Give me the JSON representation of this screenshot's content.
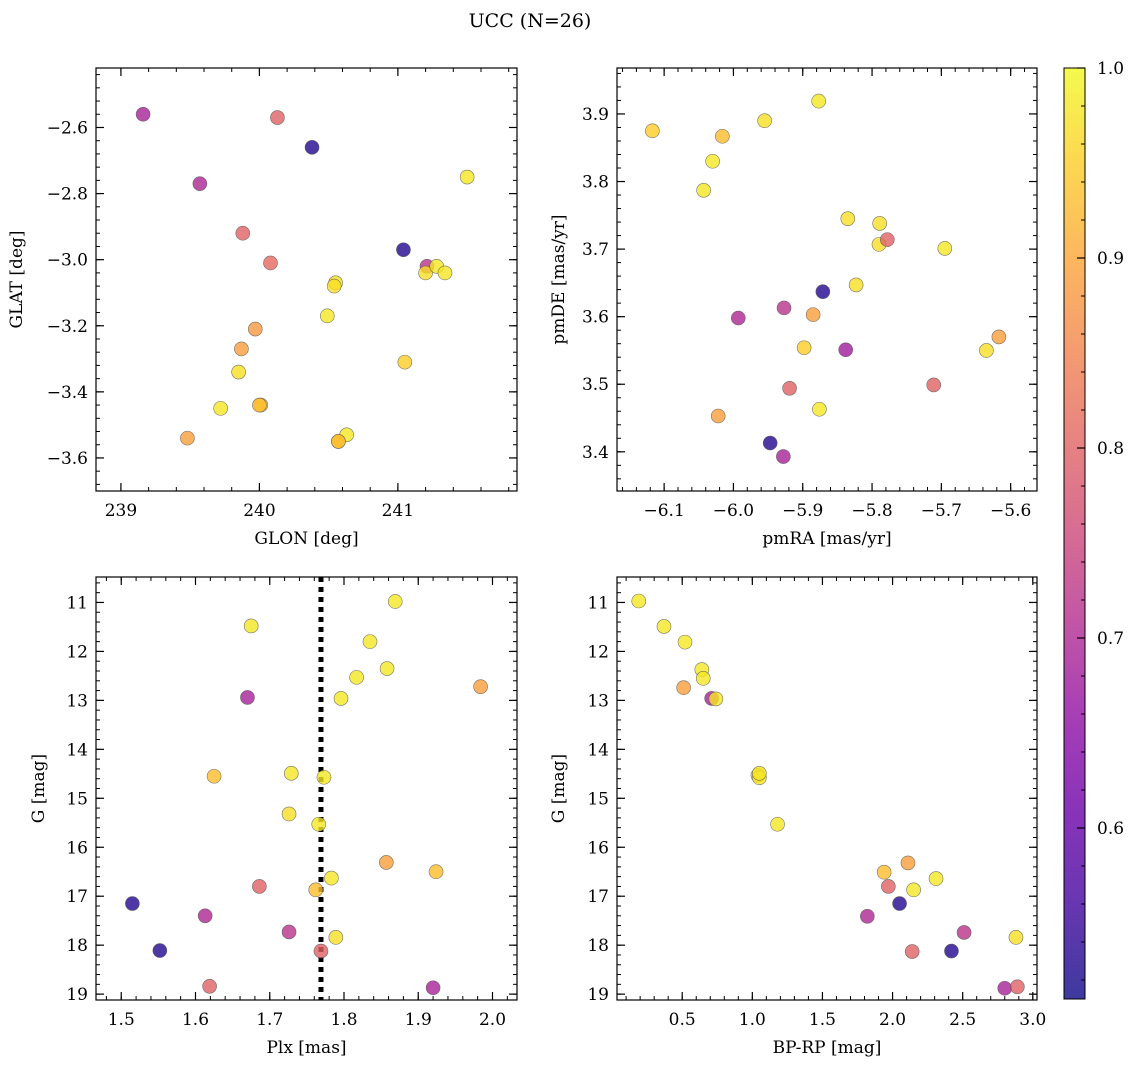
{
  "suptitle": "UCC (N=26)",
  "chart_data": [
    {
      "id": "glon-glat",
      "type": "scatter",
      "xlabel": "GLON [deg]",
      "ylabel": "GLAT [deg]",
      "xlim": [
        238.82,
        241.86
      ],
      "ylim": [
        -3.7,
        -2.42
      ],
      "y_inverted": false,
      "xticks": [
        239,
        240,
        241
      ],
      "yticks": [
        -3.6,
        -3.4,
        -3.2,
        -3.0,
        -2.8,
        -2.6
      ],
      "xtick_labels": [
        "239",
        "240",
        "241"
      ],
      "ytick_labels": [
        "−3.6",
        "−3.4",
        "−3.2",
        "−3.0",
        "−2.8",
        "−2.6"
      ],
      "x": [
        239.16,
        240.13,
        240.38,
        239.57,
        241.5,
        239.88,
        240.08,
        241.04,
        241.21,
        241.2,
        241.28,
        241.34,
        240.55,
        240.54,
        240.49,
        239.97,
        239.87,
        239.85,
        239.72,
        240.01,
        240.0,
        241.05,
        239.48,
        240.63,
        240.57,
        240.57
      ],
      "y": [
        -2.56,
        -2.57,
        -2.66,
        -2.77,
        -2.75,
        -2.92,
        -3.01,
        -2.97,
        -3.02,
        -3.04,
        -3.02,
        -3.04,
        -3.07,
        -3.08,
        -3.17,
        -3.21,
        -3.27,
        -3.34,
        -3.45,
        -3.44,
        -3.44,
        -3.31,
        -3.54,
        -3.53,
        -3.55,
        -3.55
      ],
      "c": [
        0.69,
        0.8,
        0.53,
        0.7,
        0.98,
        0.8,
        0.81,
        0.53,
        0.72,
        0.97,
        0.98,
        0.98,
        0.97,
        0.97,
        0.98,
        0.88,
        0.89,
        0.97,
        0.98,
        0.93,
        0.93,
        0.95,
        0.89,
        0.98,
        0.93,
        0.93
      ]
    },
    {
      "id": "pm",
      "type": "scatter",
      "xlabel": "pmRA [mas/yr]",
      "ylabel": "pmDE [mas/yr]",
      "xlim": [
        -6.168,
        -5.562
      ],
      "ylim": [
        3.342,
        3.968
      ],
      "y_inverted": false,
      "xticks": [
        -6.1,
        -6.0,
        -5.9,
        -5.8,
        -5.7,
        -5.6
      ],
      "yticks": [
        3.4,
        3.5,
        3.6,
        3.7,
        3.8,
        3.9
      ],
      "xtick_labels": [
        "−6.1",
        "−6.0",
        "−5.9",
        "−5.8",
        "−5.7",
        "−5.6"
      ],
      "ytick_labels": [
        "3.4",
        "3.5",
        "3.6",
        "3.7",
        "3.8",
        "3.9"
      ],
      "x": [
        -5.877,
        -6.117,
        -6.016,
        -5.955,
        -6.03,
        -6.043,
        -5.835,
        -5.789,
        -5.79,
        -5.778,
        -5.695,
        -5.823,
        -5.871,
        -5.927,
        -5.993,
        -5.885,
        -5.898,
        -5.838,
        -5.617,
        -5.635,
        -5.711,
        -5.919,
        -5.876,
        -6.022,
        -5.947,
        -5.928
      ],
      "y": [
        3.919,
        3.875,
        3.867,
        3.89,
        3.83,
        3.787,
        3.745,
        3.738,
        3.707,
        3.714,
        3.701,
        3.647,
        3.637,
        3.613,
        3.598,
        3.603,
        3.554,
        3.551,
        3.57,
        3.55,
        3.499,
        3.494,
        3.463,
        3.453,
        3.413,
        3.393
      ],
      "c": [
        0.98,
        0.95,
        0.93,
        0.97,
        0.98,
        0.98,
        0.97,
        0.97,
        0.97,
        0.8,
        0.98,
        0.97,
        0.53,
        0.72,
        0.7,
        0.89,
        0.95,
        0.68,
        0.89,
        0.97,
        0.8,
        0.8,
        0.98,
        0.89,
        0.53,
        0.69
      ]
    },
    {
      "id": "plx-g",
      "type": "scatter",
      "xlabel": "Plx [mas]",
      "ylabel": "G [mag]",
      "xlim": [
        1.466,
        2.033
      ],
      "ylim": [
        19.12,
        10.48
      ],
      "y_inverted": true,
      "xticks": [
        1.5,
        1.6,
        1.7,
        1.8,
        1.9,
        2.0
      ],
      "yticks": [
        11,
        12,
        13,
        14,
        15,
        16,
        17,
        18,
        19
      ],
      "xtick_labels": [
        "1.5",
        "1.6",
        "1.7",
        "1.8",
        "1.9",
        "2.0"
      ],
      "ytick_labels": [
        "11",
        "12",
        "13",
        "14",
        "15",
        "16",
        "17",
        "18",
        "19"
      ],
      "vline": {
        "x": 1.769,
        "style": "dotted"
      },
      "x": [
        1.869,
        1.675,
        1.835,
        1.858,
        1.817,
        1.984,
        1.67,
        1.796,
        1.625,
        1.729,
        1.773,
        1.726,
        1.766,
        1.857,
        1.924,
        1.783,
        1.686,
        1.762,
        1.515,
        1.613,
        1.726,
        1.789,
        1.552,
        1.769,
        1.619,
        1.92
      ],
      "y": [
        10.98,
        11.48,
        11.8,
        12.35,
        12.53,
        12.72,
        12.94,
        12.96,
        14.55,
        14.49,
        14.57,
        15.32,
        15.53,
        16.31,
        16.5,
        16.63,
        16.8,
        16.87,
        17.15,
        17.4,
        17.73,
        17.84,
        18.11,
        18.12,
        18.84,
        18.87
      ],
      "c": [
        0.98,
        0.98,
        0.98,
        0.98,
        0.98,
        0.89,
        0.69,
        0.98,
        0.93,
        0.98,
        0.98,
        0.97,
        0.98,
        0.89,
        0.93,
        0.98,
        0.8,
        0.93,
        0.53,
        0.7,
        0.72,
        0.97,
        0.53,
        0.8,
        0.8,
        0.69
      ]
    },
    {
      "id": "cmd",
      "type": "scatter",
      "xlabel": "BP-RP [mag]",
      "ylabel": "G [mag]",
      "xlim": [
        0.035,
        3.03
      ],
      "ylim": [
        19.12,
        10.48
      ],
      "y_inverted": true,
      "xticks": [
        0.5,
        1.0,
        1.5,
        2.0,
        2.5,
        3.0
      ],
      "yticks": [
        11,
        12,
        13,
        14,
        15,
        16,
        17,
        18,
        19
      ],
      "xtick_labels": [
        "0.5",
        "1.0",
        "1.5",
        "2.0",
        "2.5",
        "3.0"
      ],
      "ytick_labels": [
        "11",
        "12",
        "13",
        "14",
        "15",
        "16",
        "17",
        "18",
        "19"
      ],
      "x": [
        0.19,
        0.37,
        0.52,
        0.64,
        0.65,
        0.51,
        0.71,
        0.74,
        1.04,
        1.05,
        1.05,
        1.18,
        1.94,
        2.11,
        1.97,
        2.15,
        2.31,
        2.05,
        1.82,
        2.51,
        2.88,
        2.42,
        2.14,
        2.8,
        2.89
      ],
      "y": [
        10.97,
        11.49,
        11.81,
        12.37,
        12.55,
        12.74,
        12.96,
        12.97,
        14.53,
        14.58,
        14.49,
        15.53,
        16.51,
        16.32,
        16.8,
        16.87,
        16.64,
        17.15,
        17.41,
        17.74,
        17.84,
        18.12,
        18.13,
        18.88,
        18.85
      ],
      "c": [
        0.98,
        0.98,
        0.98,
        0.98,
        0.98,
        0.89,
        0.69,
        0.98,
        0.93,
        0.98,
        0.98,
        0.98,
        0.93,
        0.89,
        0.8,
        0.98,
        0.98,
        0.53,
        0.7,
        0.72,
        0.97,
        0.53,
        0.8,
        0.69,
        0.8
      ]
    }
  ],
  "colorbar": {
    "colormap": "plasma",
    "clim": [
      0.51,
      1.0
    ],
    "ticks": [
      0.6,
      0.7,
      0.8,
      0.9,
      1.0
    ],
    "tick_labels": [
      "0.6",
      "0.7",
      "0.8",
      "0.9",
      "1.0"
    ]
  },
  "style": {
    "marker_alpha": 0.8,
    "marker_edge": "#555555",
    "vline_color": "#000000"
  }
}
